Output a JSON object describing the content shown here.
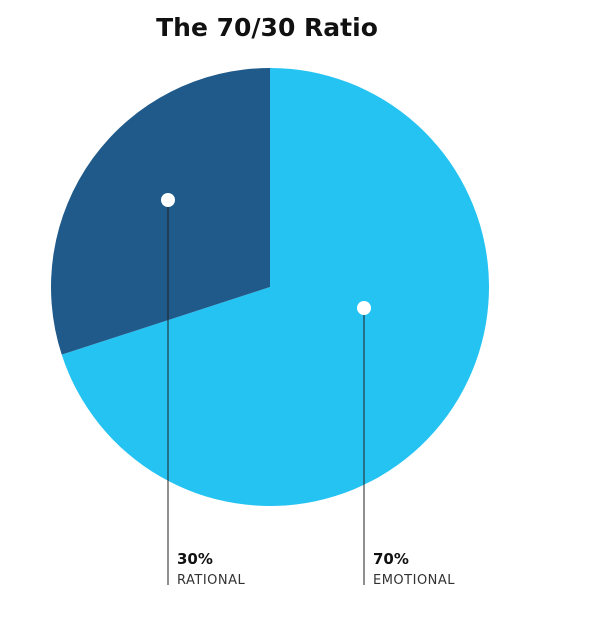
{
  "chart_data": {
    "type": "pie",
    "title": "The 70/30 Ratio",
    "categories": [
      "EMOTIONAL",
      "RATIONAL"
    ],
    "values": [
      70,
      30
    ],
    "value_labels": [
      "70%",
      "30%"
    ],
    "colors": [
      "#25c3f2",
      "#1f5a8a"
    ]
  }
}
